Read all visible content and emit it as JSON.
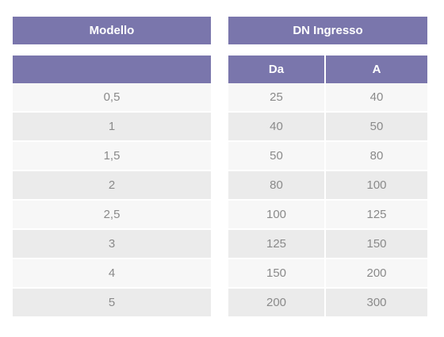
{
  "model_table": {
    "header": "Modello",
    "sub_header": "",
    "rows": [
      "0,5",
      "1",
      "1,5",
      "2",
      "2,5",
      "3",
      "4",
      "5"
    ]
  },
  "dn_table": {
    "header": "DN Ingresso",
    "sub_headers": [
      "Da",
      "A"
    ],
    "rows": [
      [
        "25",
        "40"
      ],
      [
        "40",
        "50"
      ],
      [
        "50",
        "80"
      ],
      [
        "80",
        "100"
      ],
      [
        "100",
        "125"
      ],
      [
        "125",
        "150"
      ],
      [
        "150",
        "200"
      ],
      [
        "200",
        "300"
      ]
    ]
  }
}
